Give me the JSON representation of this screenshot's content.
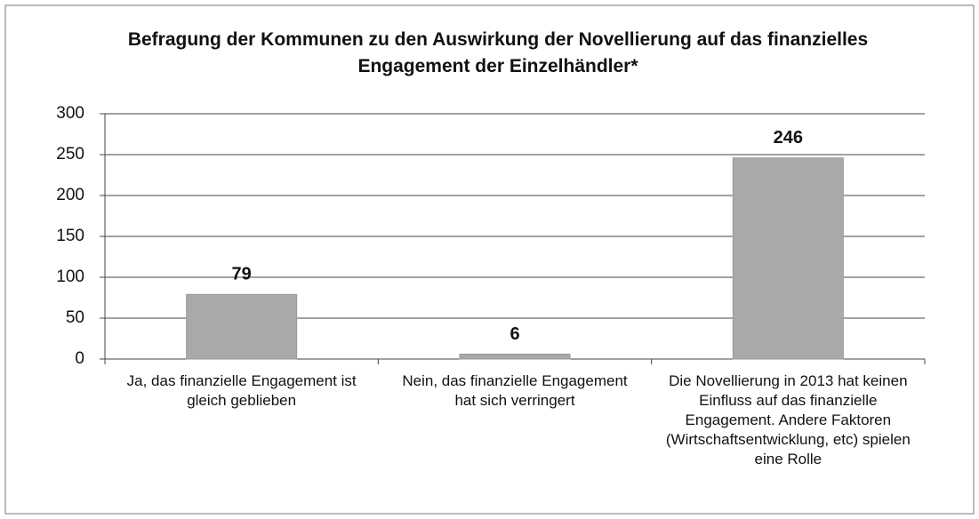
{
  "chart_data": {
    "type": "bar",
    "title": "Befragung der Kommunen zu den Auswirkung der Novellierung auf das finanzielles Engagement der Einzelhändler*",
    "categories": [
      "Ja, das finanzielle Engagement ist gleich geblieben",
      "Nein, das finanzielle Engagement hat sich verringert",
      "Die Novellierung in 2013 hat keinen Einfluss auf das finanzielle Engagement. Andere Faktoren (Wirtschaftsentwicklung, etc) spielen eine Rolle"
    ],
    "values": [
      79,
      6,
      246
    ],
    "color": "#a9a9a9",
    "ylim": [
      0,
      300
    ],
    "yticks": [
      0,
      50,
      100,
      150,
      200,
      250,
      300
    ],
    "grid": true
  }
}
